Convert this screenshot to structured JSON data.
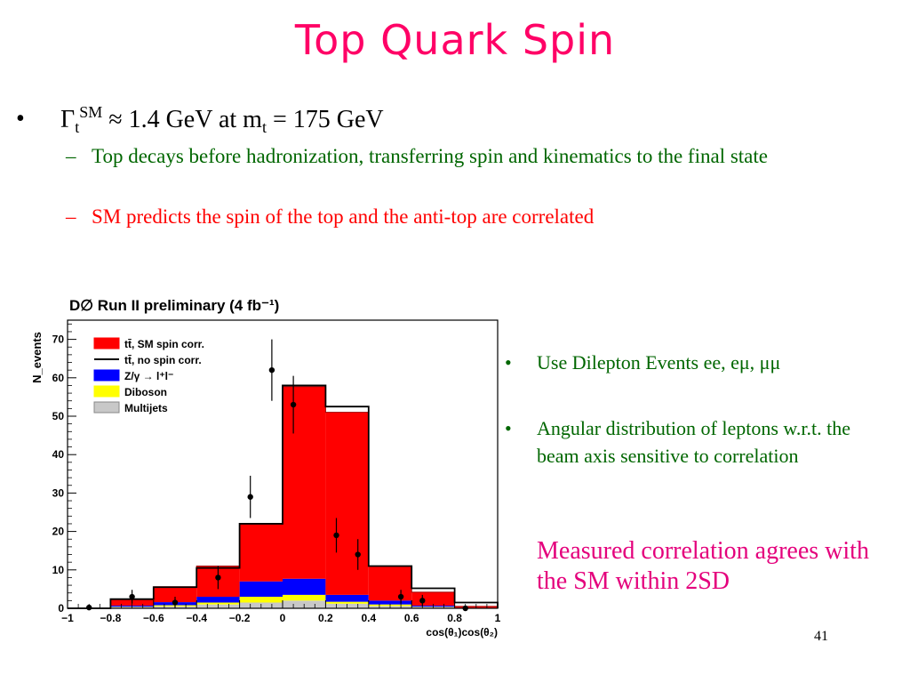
{
  "slide": {
    "title": "Top Quark Spin",
    "page_number": "41"
  },
  "bullet1": {
    "marker": "•",
    "gamma": "Γ",
    "gamma_sub": "t",
    "gamma_sup": "SM",
    "rest": " ≈ 1.4 GeV at m",
    "m_sub": "t",
    "end": " = 175 GeV",
    "subs": [
      {
        "dash": "–",
        "text": "Top decays before hadronization, transferring spin and kinematics to the final state",
        "color": "#006600"
      },
      {
        "dash": "–",
        "text": "SM predicts the spin of the top and the anti-top are correlated",
        "color": "#ff0000"
      }
    ]
  },
  "right_bullets": [
    {
      "marker": "•",
      "text": "Use Dilepton Events ee, eμ, μμ"
    },
    {
      "marker": "•",
      "text": "Angular distribution of leptons w.r.t. the beam axis sensitive to correlation"
    }
  ],
  "conclusion": "Measured correlation agrees with the SM within 2SD",
  "chart_data": {
    "type": "bar",
    "title": "D∅ Run II preliminary (4 fb⁻¹)",
    "xlabel": "cos(θ₁)cos(θ₂)",
    "ylabel": "N_events",
    "xlim": [
      -1,
      1
    ],
    "ylim": [
      0,
      75
    ],
    "x_ticks": [
      "-1",
      "-0.8",
      "-0.6",
      "-0.4",
      "-0.2",
      "0",
      "0.2",
      "0.4",
      "0.6",
      "0.8",
      "1"
    ],
    "y_ticks": [
      "0",
      "10",
      "20",
      "30",
      "40",
      "50",
      "60",
      "70"
    ],
    "bin_edges": [
      -1,
      -0.8,
      -0.6,
      -0.4,
      -0.2,
      0,
      0.2,
      0.4,
      0.6,
      0.8,
      1
    ],
    "legend_position": "top-left",
    "series": [
      {
        "name": "Multijets",
        "color": "#c8c8c8",
        "stack": "sm",
        "values": [
          0,
          0.3,
          0.5,
          1,
          1.5,
          2,
          1.2,
          0.6,
          0.3,
          0
        ]
      },
      {
        "name": "Diboson",
        "color": "#ffff00",
        "stack": "sm",
        "values": [
          0,
          0.1,
          0.3,
          0.5,
          1.5,
          1.5,
          0.5,
          0.4,
          0.1,
          0
        ]
      },
      {
        "name": "Z/γ → l⁺l⁻",
        "color": "#0000ff",
        "stack": "sm",
        "values": [
          0,
          0.3,
          0.8,
          1.5,
          4.0,
          4.2,
          1.8,
          1.0,
          0.3,
          0
        ]
      },
      {
        "name": "tt̄, SM spin corr.",
        "color": "#ff0000",
        "stack": "sm",
        "values": [
          0,
          1.5,
          4.0,
          8.0,
          15.0,
          50.0,
          47.5,
          9.0,
          3.5,
          0.5
        ]
      },
      {
        "name": "tt̄, no spin corr.",
        "color": "#000000",
        "type": "step_total",
        "values": [
          0,
          2.4,
          5.5,
          10.5,
          22.0,
          58.0,
          52.5,
          11.0,
          5.2,
          1.5
        ]
      }
    ],
    "data_points": [
      {
        "x": -0.9,
        "y": 0.2,
        "err": 0.3
      },
      {
        "x": -0.7,
        "y": 3,
        "err": 1.8
      },
      {
        "x": -0.5,
        "y": 1.5,
        "err": 1.5
      },
      {
        "x": -0.3,
        "y": 8,
        "err": 3
      },
      {
        "x": -0.15,
        "y": 29,
        "err": 5.5
      },
      {
        "x": -0.05,
        "y": 62,
        "err": 8
      },
      {
        "x": 0.05,
        "y": 53,
        "err": 7.5
      },
      {
        "x": 0.25,
        "y": 19,
        "err": 4.5
      },
      {
        "x": 0.35,
        "y": 14,
        "err": 4
      },
      {
        "x": 0.55,
        "y": 3,
        "err": 1.8
      },
      {
        "x": 0.65,
        "y": 2,
        "err": 1.5
      },
      {
        "x": 0.85,
        "y": 0,
        "err": 0.5
      }
    ]
  }
}
